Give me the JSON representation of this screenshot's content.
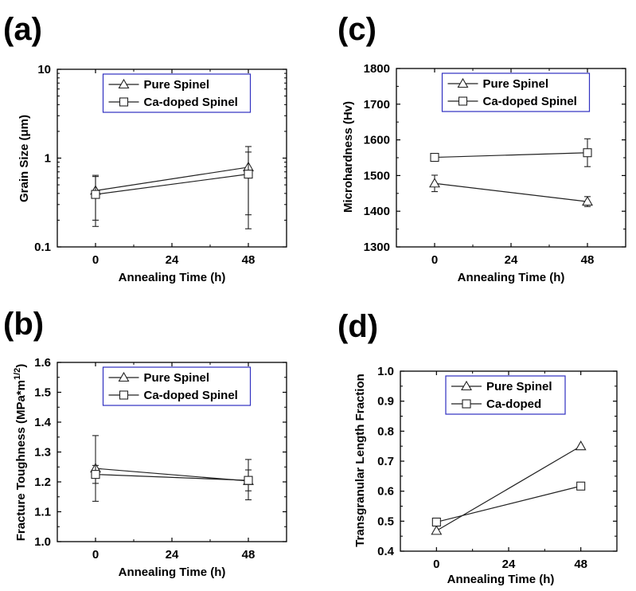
{
  "chart_data": [
    {
      "type": "line",
      "panel_label": "(a)",
      "xlabel": "Annealing Time (h)",
      "ylabel": "Grain Size (μm)",
      "yscale": "log",
      "xlim": [
        -12,
        60
      ],
      "ylim": [
        0.1,
        10
      ],
      "x_ticks": [
        0,
        24,
        48
      ],
      "y_ticks": [
        0.1,
        1,
        10
      ],
      "y_tick_labels": [
        "0.1",
        "1",
        "10"
      ],
      "legend_position": "top-center",
      "series": [
        {
          "name": "Pure Spinel",
          "marker": "triangle",
          "x": [
            0,
            48
          ],
          "y": [
            0.43,
            0.79
          ],
          "err_low": [
            0.2,
            0.23
          ],
          "err_high": [
            0.64,
            1.35
          ]
        },
        {
          "name": "Ca-doped Spinel",
          "marker": "square",
          "x": [
            0,
            48
          ],
          "y": [
            0.39,
            0.66
          ],
          "err_low": [
            0.17,
            0.16
          ],
          "err_high": [
            0.62,
            1.17
          ]
        }
      ]
    },
    {
      "type": "line",
      "panel_label": "(c)",
      "xlabel": "Annealing Time (h)",
      "ylabel": "Microhardness (Hv)",
      "yscale": "linear",
      "xlim": [
        -12,
        60
      ],
      "ylim": [
        1300,
        1800
      ],
      "x_ticks": [
        0,
        24,
        48
      ],
      "y_ticks": [
        1300,
        1400,
        1500,
        1600,
        1700,
        1800
      ],
      "y_tick_labels": [
        "1300",
        "1400",
        "1500",
        "1600",
        "1700",
        "1800"
      ],
      "legend_position": "top-center",
      "series": [
        {
          "name": "Pure Spinel",
          "marker": "triangle",
          "x": [
            0,
            48
          ],
          "y": [
            1478,
            1427
          ],
          "err_low": [
            1455,
            1413
          ],
          "err_high": [
            1501,
            1441
          ]
        },
        {
          "name": "Ca-doped Spinel",
          "marker": "square",
          "x": [
            0,
            48
          ],
          "y": [
            1551,
            1564
          ],
          "err_low": [
            1541,
            1525
          ],
          "err_high": [
            1561,
            1603
          ]
        }
      ]
    },
    {
      "type": "line",
      "panel_label": "(b)",
      "xlabel": "Annealing Time (h)",
      "ylabel": "Fracture Toughness (MPa*m",
      "ylabel_superscript": "1/2",
      "ylabel_suffix": ")",
      "yscale": "linear",
      "xlim": [
        -12,
        60
      ],
      "ylim": [
        1.0,
        1.6
      ],
      "x_ticks": [
        0,
        24,
        48
      ],
      "y_ticks": [
        1.0,
        1.1,
        1.2,
        1.3,
        1.4,
        1.5,
        1.6
      ],
      "y_tick_labels": [
        "1.0",
        "1.1",
        "1.2",
        "1.3",
        "1.4",
        "1.5",
        "1.6"
      ],
      "legend_position": "top-center",
      "series": [
        {
          "name": "Pure Spinel",
          "marker": "triangle",
          "x": [
            0,
            48
          ],
          "y": [
            1.245,
            1.203
          ],
          "err_low": [
            1.135,
            1.14
          ],
          "err_high": [
            1.355,
            1.275
          ]
        },
        {
          "name": "Ca-doped Spinel",
          "marker": "square",
          "x": [
            0,
            48
          ],
          "y": [
            1.225,
            1.205
          ],
          "err_low": [
            1.195,
            1.17
          ],
          "err_high": [
            1.255,
            1.24
          ]
        }
      ]
    },
    {
      "type": "line",
      "panel_label": "(d)",
      "xlabel": "Annealing Time (h)",
      "ylabel": "Transgranular Length Fraction",
      "yscale": "linear",
      "xlim": [
        -12,
        60
      ],
      "ylim": [
        0.4,
        1.0
      ],
      "x_ticks": [
        0,
        24,
        48
      ],
      "y_ticks": [
        0.4,
        0.5,
        0.6,
        0.7,
        0.8,
        0.9,
        1.0
      ],
      "y_tick_labels": [
        "0.4",
        "0.5",
        "0.6",
        "0.7",
        "0.8",
        "0.9",
        "1.0"
      ],
      "legend_position": "top-center",
      "series": [
        {
          "name": "Pure Spinel",
          "marker": "triangle",
          "x": [
            0,
            48
          ],
          "y": [
            0.468,
            0.75
          ]
        },
        {
          "name": "Ca-doped",
          "marker": "square",
          "x": [
            0,
            48
          ],
          "y": [
            0.497,
            0.617
          ]
        }
      ]
    }
  ]
}
